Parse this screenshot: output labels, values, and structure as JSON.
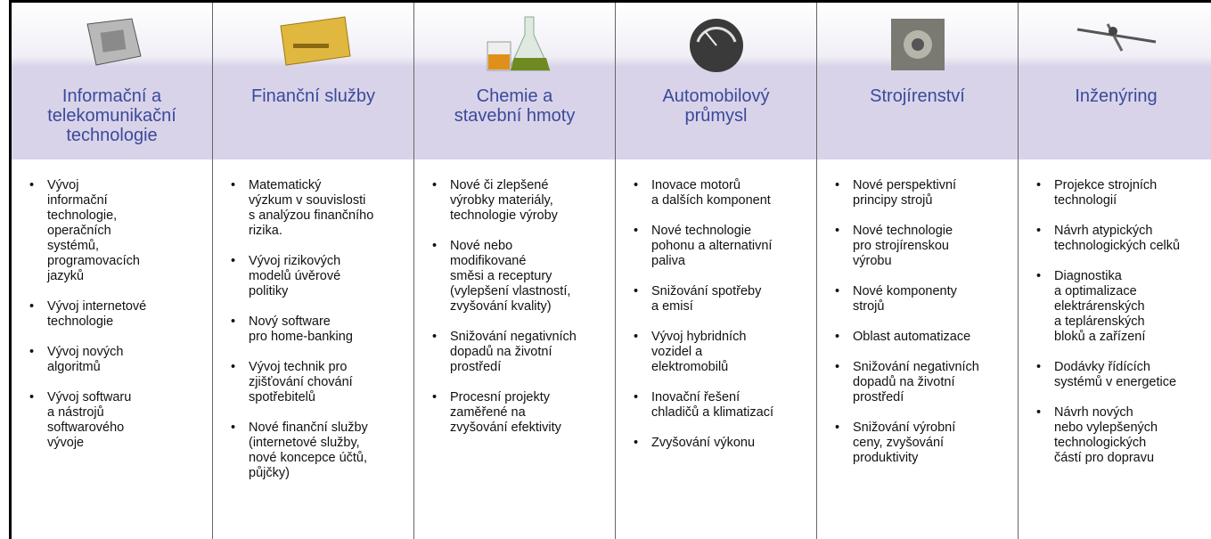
{
  "columns": [
    {
      "title": "Informační a\ntelekomunikační\ntechnologie",
      "bullets": [
        "Vývoj\ninformační\ntechnologie,\noperačních\nsystémů,\nprogramovacích\njazyků",
        "Vývoj internetové\ntechnologie",
        "Vývoj nových\nalgoritmů",
        "Vývoj softwaru\na nástrojů\nsoftwarového\nvývoje"
      ]
    },
    {
      "title": "Finanční služby",
      "bullets": [
        "Matematický\nvýzkum v souvislosti\ns analýzou finančního\nrizika.",
        "Vývoj rizikových\nmodelů úvěrové\npolitiky",
        "Nový software\npro home-banking",
        "Vývoj technik pro\nzjišťování chování\nspotřebitelů",
        "Nové finanční služby\n(internetové služby,\nnové koncepce účtů,\npůjčky)"
      ]
    },
    {
      "title": "Chemie a\nstavební hmoty",
      "bullets": [
        "Nové či zlepšené\nvýrobky materiály,\ntechnologie výroby",
        "Nové nebo\nmodifikované\nsměsi a receptury\n(vylepšení vlastností,\nzvyšování kvality)",
        "Snižování negativních\ndopadů na životní\nprostředí",
        "Procesní projekty\nzaměřené na\nzvyšování efektivity"
      ]
    },
    {
      "title": "Automobilový\nprůmysl",
      "bullets": [
        "Inovace motorů\na dalších komponent",
        "Nové technologie\npohonu a alternativní\npaliva",
        "Snižování spotřeby\na emisí",
        "Vývoj hybridních\nvozidel a\nelektromobilů",
        "Inovační řešení\nchladičů a klimatizací",
        "Zvyšování výkonu"
      ]
    },
    {
      "title": "Strojírenství",
      "bullets": [
        "Nové perspektivní\nprincipy strojů",
        "Nové technologie\npro strojírenskou\nvýrobu",
        "Nové komponenty\nstrojů",
        "Oblast automatizace",
        "Snižování negativních\ndopadů na životní\nprostředí",
        "Snižování výrobní\nceny, zvyšování\nproduktivity"
      ]
    },
    {
      "title": "Inženýring",
      "bullets": [
        "Projekce strojních\ntechnologií",
        "Návrh atypických\ntechnologických celků",
        "Diagnostika\na optimalizace\nelektrárenských\na teplárenských\nbloků a zařízení",
        "Dodávky řídících\nsystémů v energetice",
        "Návrh nových\nnebo vylepšených\ntechnologických\nčástí pro dopravu"
      ]
    }
  ]
}
